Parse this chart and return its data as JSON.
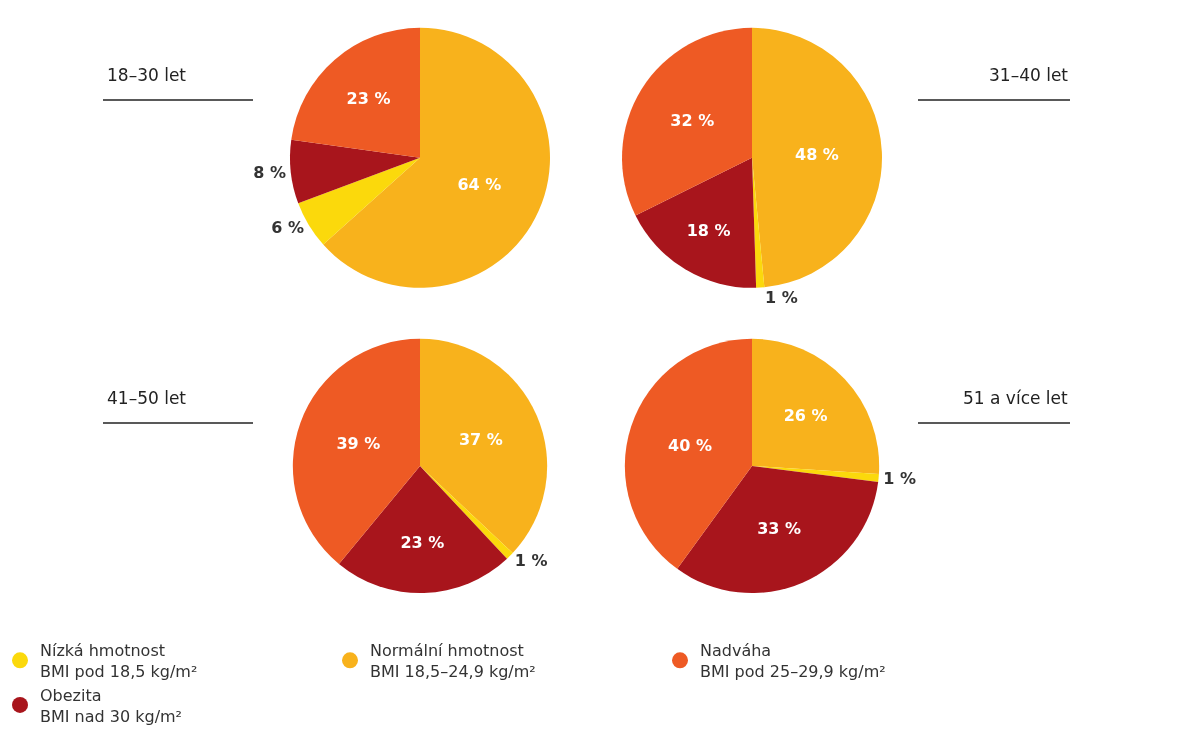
{
  "chart_data": [
    {
      "type": "pie",
      "title": "18–30 let",
      "categories": [
        "Nízká hmotnost\nBMI pod 18,5 kg/m²",
        "Normální hmotnost\nBMI 18,5–24,9 kg/m²",
        "Nadváha\nBMI pod 25–29,9 kg/m²",
        "Obezita\nBMI nad 30 kg/m²"
      ],
      "values": [
        6,
        64,
        23,
        8
      ],
      "value_labels": [
        "6 %",
        "64 %",
        "23 %",
        "8 %"
      ],
      "colors": [
        "#fbd90c",
        "#f8b21c",
        "#ee5a24",
        "#a8151c"
      ],
      "legend": "bottom"
    },
    {
      "type": "pie",
      "title": "31–40 let",
      "categories": [
        null,
        null,
        null,
        null
      ],
      "values": [
        1,
        48,
        32,
        18
      ],
      "value_labels": [
        "1 %",
        "48 %",
        "32 %",
        "18 %"
      ],
      "colors": [
        "#fbd90c",
        "#f8b21c",
        "#ee5a24",
        "#a8151c"
      ]
    },
    {
      "type": "pie",
      "title": "41–50 let",
      "categories": [
        null,
        null,
        null,
        null
      ],
      "values": [
        1,
        37,
        39,
        23
      ],
      "value_labels": [
        "1 %",
        "37 %",
        "39 %",
        "23 %"
      ],
      "colors": [
        "#fbd90c",
        "#f8b21c",
        "#ee5a24",
        "#a8151c"
      ]
    },
    {
      "type": "pie",
      "title": "51 a více let",
      "categories": [
        null,
        null,
        null,
        null
      ],
      "values": [
        1,
        26,
        40,
        33
      ],
      "value_labels": [
        "1 %",
        "26 %",
        "40 %",
        "33 %"
      ],
      "colors": [
        "#fbd90c",
        "#f8b21c",
        "#ee5a24",
        "#a8151c"
      ]
    }
  ]
}
